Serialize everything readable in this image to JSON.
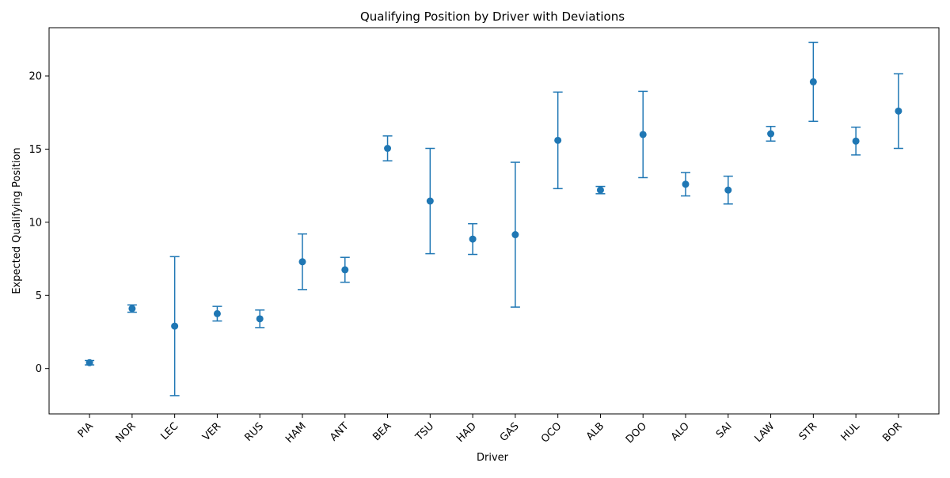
{
  "chart_data": {
    "type": "scatter",
    "title": "Qualifying Position by Driver with Deviations",
    "xlabel": "Driver",
    "ylabel": "Expected Qualifying Position",
    "categories": [
      "PIA",
      "NOR",
      "LEC",
      "VER",
      "RUS",
      "HAM",
      "ANT",
      "BEA",
      "TSU",
      "HAD",
      "GAS",
      "OCO",
      "ALB",
      "DOO",
      "ALO",
      "SAI",
      "LAW",
      "STR",
      "HUL",
      "BOR"
    ],
    "series": [
      {
        "values": [
          0.4,
          4.1,
          2.9,
          3.75,
          3.4,
          7.3,
          6.75,
          15.05,
          11.45,
          8.85,
          9.15,
          15.6,
          12.2,
          16.0,
          12.6,
          12.2,
          16.05,
          19.6,
          15.55,
          17.6
        ],
        "errors": [
          0.15,
          0.25,
          4.75,
          0.5,
          0.6,
          1.9,
          0.85,
          0.85,
          3.6,
          1.05,
          4.95,
          3.3,
          0.25,
          2.95,
          0.8,
          0.95,
          0.5,
          2.7,
          0.95,
          2.55
        ],
        "color": "#1f77b4"
      }
    ],
    "ylim": [
      -3.1,
      23.3
    ],
    "yticks": [
      0,
      5,
      10,
      15,
      20
    ],
    "grid": false,
    "legend": "none"
  }
}
